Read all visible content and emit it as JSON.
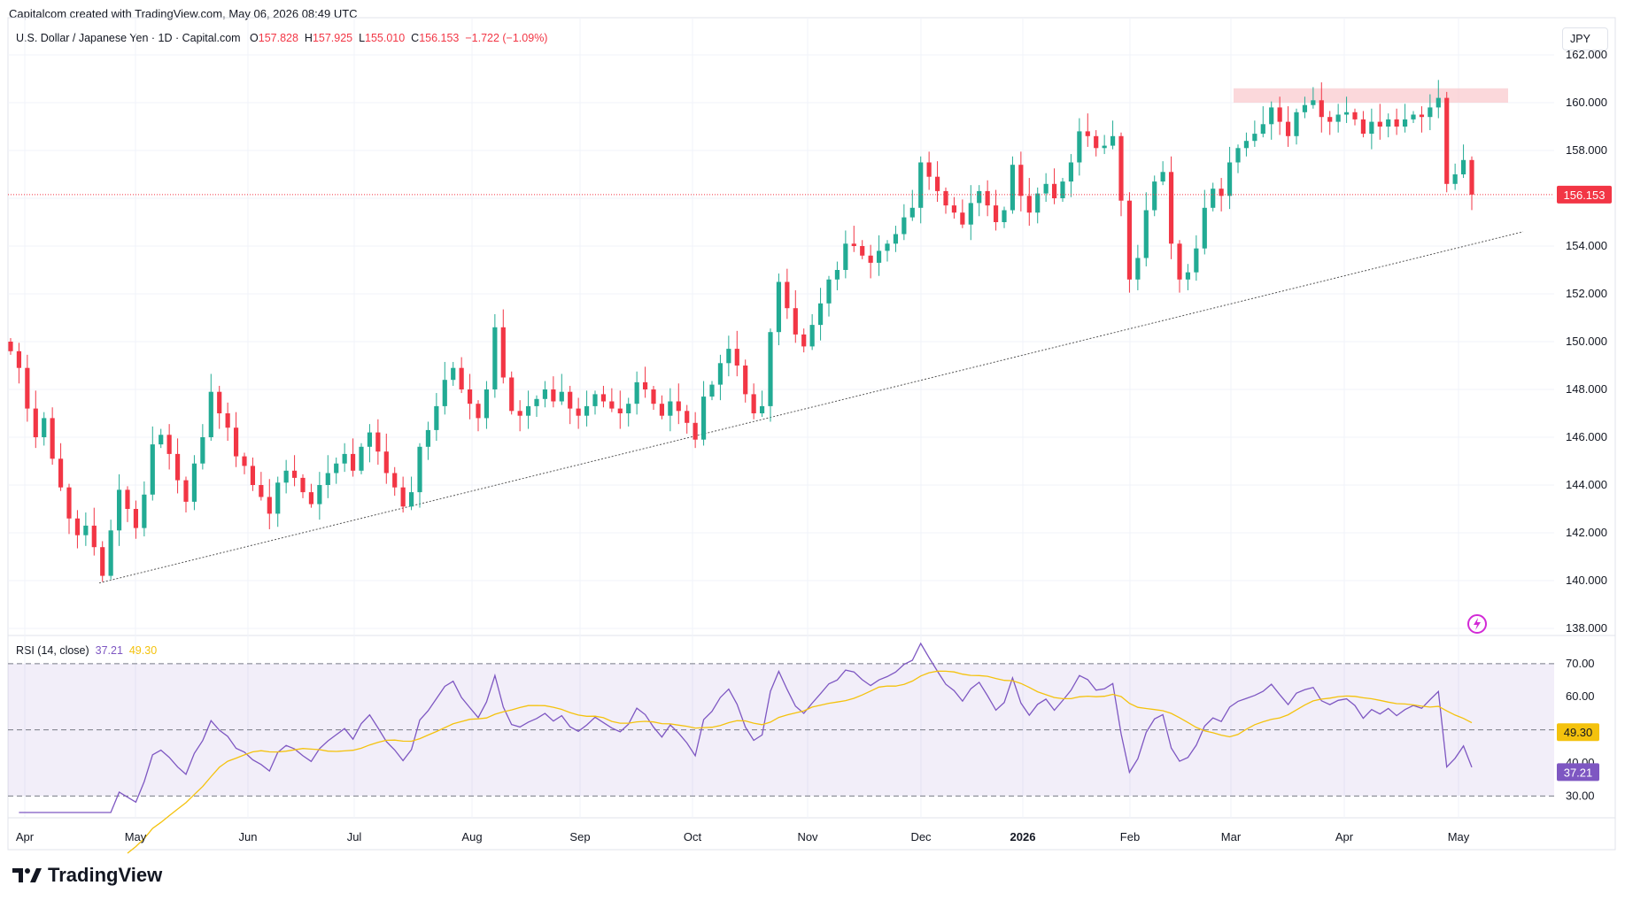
{
  "header": {
    "attribution": "Capitalcom created with TradingView.com, May 06, 2026 08:49 UTC"
  },
  "legend": {
    "symbol": "U.S. Dollar / Japanese Yen · 1D · Capital.com",
    "o_label": "O",
    "o": "157.828",
    "h_label": "H",
    "h": "157.925",
    "l_label": "L",
    "l": "155.010",
    "c_label": "C",
    "c": "156.153",
    "change": "−1.722 (−1.09%)"
  },
  "rsi_legend": {
    "label": "RSI (14, close)",
    "rsi": "37.21",
    "ma": "49.30"
  },
  "currency": "JPY",
  "brand": "TradingView",
  "colors": {
    "up": "#22ab94",
    "down": "#f23645",
    "rsi": "#7e57c2",
    "rsi_ma": "#f4c20d",
    "band": "#7e57c2",
    "resistance_zone": "#f9c7cc"
  },
  "chart_data": [
    {
      "type": "candlestick",
      "title": "U.S. Dollar / Japanese Yen · 1D · Capital.com",
      "ylim": [
        138,
        162
      ],
      "y_ticks": [
        "162.000",
        "160.000",
        "158.000",
        "156.000",
        "154.000",
        "152.000",
        "150.000",
        "148.000",
        "146.000",
        "144.000",
        "142.000",
        "140.000",
        "138.000"
      ],
      "x_ticks": [
        "Apr",
        "May",
        "Jun",
        "Jul",
        "Aug",
        "Sep",
        "Oct",
        "Nov",
        "Dec",
        "2026",
        "Feb",
        "Mar",
        "Apr",
        "May"
      ],
      "last_price": "156.153",
      "close_series": [
        149.6,
        148.9,
        147.2,
        146.0,
        146.8,
        145.1,
        143.9,
        142.6,
        141.9,
        142.3,
        141.4,
        140.2,
        142.1,
        143.8,
        143.0,
        142.2,
        143.6,
        145.7,
        146.1,
        145.3,
        144.2,
        143.3,
        144.9,
        146.0,
        147.9,
        147.0,
        146.4,
        145.2,
        144.8,
        144.0,
        143.5,
        142.8,
        144.1,
        144.6,
        144.3,
        143.7,
        143.2,
        144.0,
        144.5,
        144.9,
        145.3,
        144.6,
        145.6,
        146.2,
        145.4,
        144.5,
        143.9,
        143.1,
        143.7,
        145.6,
        146.3,
        147.3,
        148.4,
        148.9,
        148.0,
        147.4,
        146.8,
        148.0,
        150.6,
        148.5,
        147.1,
        146.9,
        147.3,
        147.6,
        148.0,
        147.5,
        147.9,
        147.2,
        146.9,
        147.3,
        147.8,
        147.5,
        147.2,
        147.0,
        147.4,
        148.3,
        148.0,
        147.4,
        146.9,
        147.5,
        147.1,
        146.6,
        145.9,
        147.7,
        148.2,
        149.1,
        149.7,
        149.0,
        147.8,
        147.0,
        147.3,
        150.4,
        152.5,
        151.4,
        150.3,
        149.8,
        150.7,
        151.6,
        152.6,
        153.0,
        154.1,
        154.0,
        153.6,
        153.3,
        153.8,
        154.1,
        154.5,
        155.2,
        155.6,
        157.5,
        156.9,
        156.3,
        155.7,
        155.4,
        154.9,
        155.8,
        156.3,
        155.7,
        155.0,
        155.5,
        157.4,
        156.1,
        155.4,
        156.2,
        156.6,
        156.0,
        156.7,
        157.5,
        158.8,
        158.6,
        158.1,
        158.2,
        158.6,
        155.9,
        152.6,
        153.5,
        155.5,
        156.7,
        157.1,
        154.1,
        152.6,
        152.9,
        153.9,
        155.6,
        156.4,
        156.1,
        157.5,
        158.1,
        158.4,
        158.7,
        159.1,
        159.8,
        159.2,
        158.6,
        159.6,
        159.9,
        160.1,
        159.4,
        159.2,
        159.5,
        159.6,
        159.3,
        158.7,
        159.2,
        159.0,
        159.3,
        159.0,
        159.3,
        159.5,
        159.4,
        159.8,
        160.2,
        156.6,
        157.0,
        157.6,
        156.153
      ],
      "annotations": [
        "ascending trendline",
        "resistance zone near 160.000-160.600"
      ]
    },
    {
      "type": "line",
      "title": "RSI (14, close)",
      "ylim": [
        25,
        78
      ],
      "y_ticks": [
        "70.00",
        "60.00",
        "50.00",
        "40.00",
        "30.00"
      ],
      "bands": {
        "upper": 70,
        "middle": 50,
        "lower": 30
      },
      "series": [
        {
          "name": "RSI",
          "current": 37.21
        },
        {
          "name": "RSI MA",
          "current": 49.3
        }
      ]
    }
  ]
}
